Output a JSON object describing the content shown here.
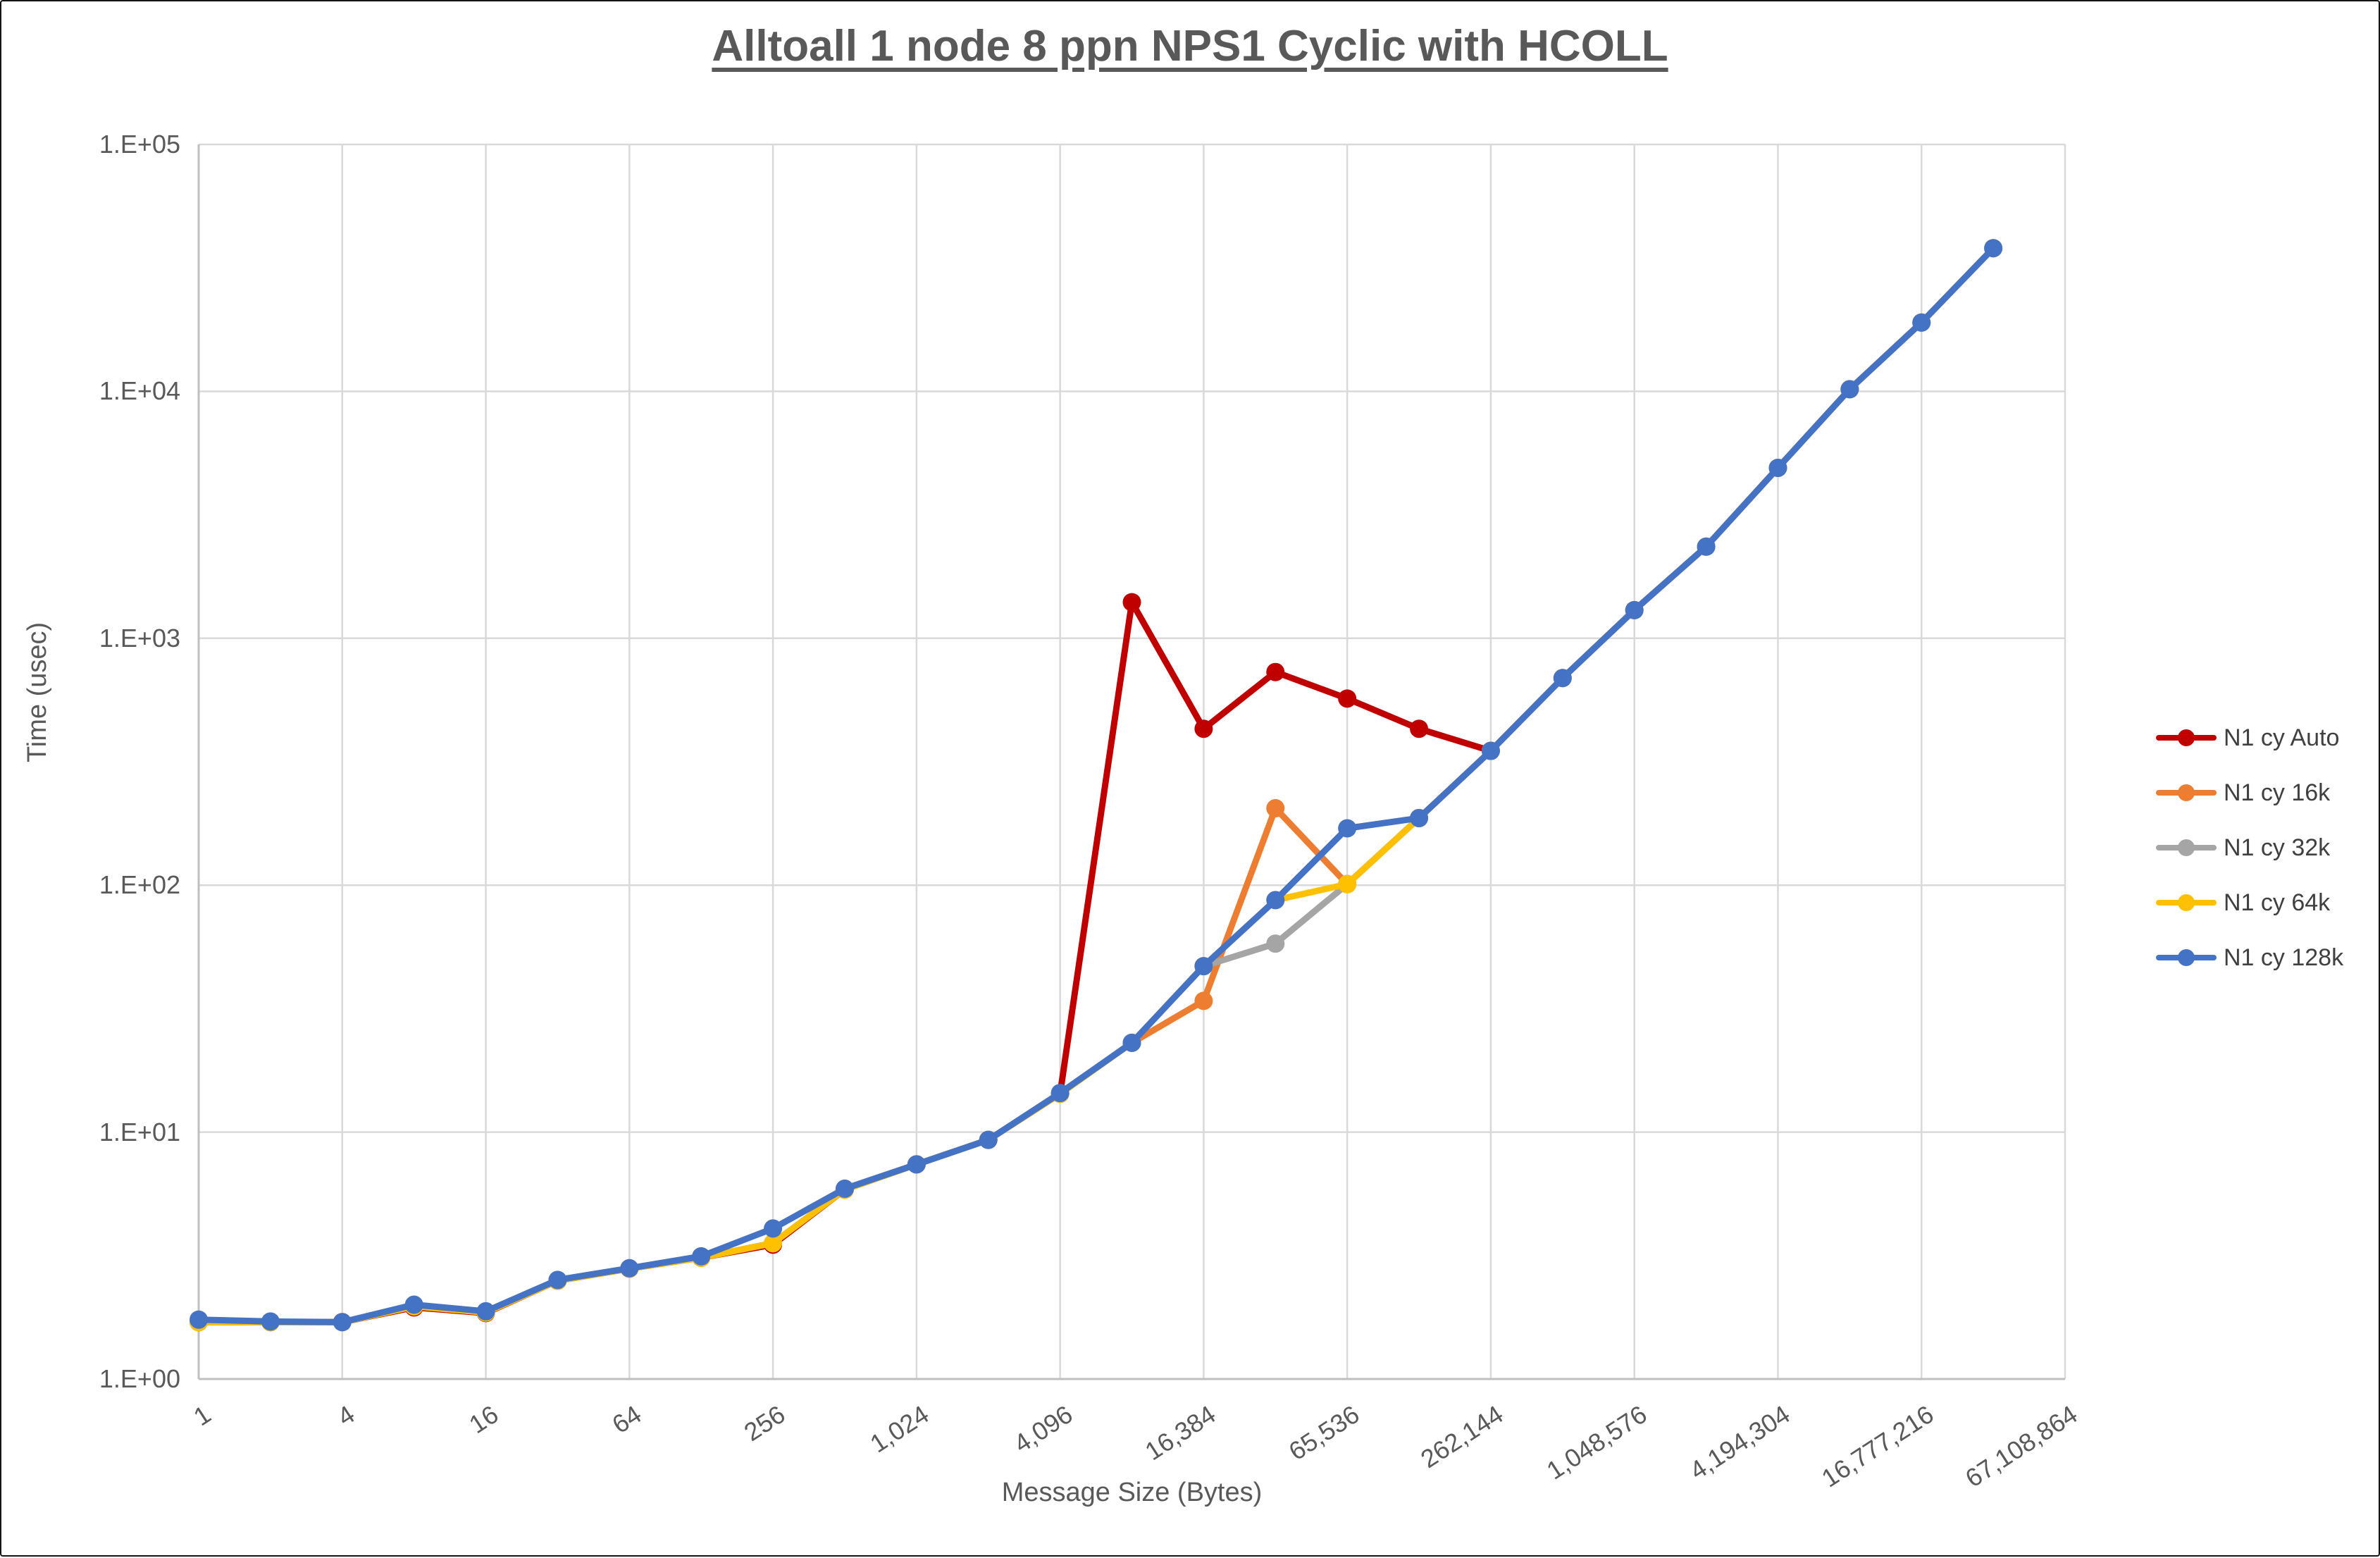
{
  "title": "Alltoall 1 node 8 ppn NPS1 Cyclic with HCOLL",
  "colors": {
    "auto": "#C00000",
    "k16": "#ED7D31",
    "k32": "#A5A5A5",
    "k64": "#FFC000",
    "k128": "#4472C4",
    "gridline": "#D9D9D9",
    "axis_text": "#595959",
    "legend_text": "#404040"
  },
  "legend": {
    "items": [
      {
        "label": "N1 cy Auto",
        "color": "#C00000"
      },
      {
        "label": "N1 cy 16k",
        "color": "#ED7D31"
      },
      {
        "label": "N1 cy 32k",
        "color": "#A5A5A5"
      },
      {
        "label": "N1 cy 64k",
        "color": "#FFC000"
      },
      {
        "label": "N1 cy 128k",
        "color": "#4472C4"
      }
    ]
  },
  "chart_data": {
    "type": "line",
    "title": "Alltoall 1 node 8 ppn NPS1 Cyclic with HCOLL",
    "xlabel": "Message Size (Bytes)",
    "ylabel": "Time (usec)",
    "x_scale": "log2-categories",
    "y_scale": "log10",
    "ylim": [
      1,
      100000
    ],
    "grid": true,
    "legend_position": "right",
    "sizes": [
      1,
      2,
      4,
      8,
      16,
      32,
      64,
      128,
      256,
      512,
      1024,
      2048,
      4096,
      8192,
      16384,
      32768,
      65536,
      131072,
      262144,
      524288,
      1048576,
      2097152,
      4194304,
      8388608,
      16777216,
      33554432
    ],
    "x_tick_labels": [
      "1",
      "4",
      "16",
      "64",
      "256",
      "1,024",
      "4,096",
      "16,384",
      "65,536",
      "262,144",
      "1,048,576",
      "4,194,304",
      "16,777,216",
      "67,108,864"
    ],
    "y_tick_labels": [
      "1.E+00",
      "1.E+01",
      "1.E+02",
      "1.E+03",
      "1.E+04",
      "1.E+05"
    ],
    "x_categories_total": 27,
    "series": [
      {
        "name": "N1 cy Auto",
        "color": "#C00000",
        "values": [
          1.7,
          1.7,
          1.7,
          1.95,
          1.85,
          2.5,
          2.8,
          3.1,
          3.5,
          5.85,
          7.4,
          9.3,
          14.3,
          1400,
          430,
          730,
          570,
          430,
          350
        ]
      },
      {
        "name": "N1 cy 16k",
        "color": "#ED7D31",
        "values": [
          1.7,
          1.7,
          1.7,
          1.97,
          1.86,
          2.5,
          2.8,
          3.1,
          3.55,
          5.85,
          7.4,
          9.3,
          14.3,
          23,
          34,
          205,
          101,
          187,
          350,
          690,
          1300,
          2350,
          4900,
          10200,
          19000,
          38000
        ]
      },
      {
        "name": "N1 cy 32k",
        "color": "#A5A5A5",
        "values": [
          1.7,
          1.7,
          1.7,
          1.97,
          1.86,
          2.5,
          2.8,
          3.1,
          3.55,
          5.85,
          7.4,
          9.3,
          14.3,
          23,
          47,
          58,
          101,
          187,
          350,
          690,
          1300,
          2350,
          4900,
          10200,
          19000,
          38000
        ]
      },
      {
        "name": "N1 cy 64k",
        "color": "#FFC000",
        "values": [
          1.7,
          1.7,
          1.7,
          1.97,
          1.86,
          2.5,
          2.8,
          3.1,
          3.55,
          5.85,
          7.4,
          9.3,
          14.3,
          23,
          47,
          87,
          101,
          187,
          350,
          690,
          1300,
          2350,
          4900,
          10200,
          19000,
          38000
        ]
      },
      {
        "name": "N1 cy 128k",
        "color": "#4472C4",
        "values": [
          1.74,
          1.71,
          1.7,
          2.0,
          1.88,
          2.52,
          2.81,
          3.14,
          4.07,
          5.9,
          7.4,
          9.3,
          14.4,
          23,
          47,
          87,
          170,
          187,
          350,
          690,
          1300,
          2350,
          4900,
          10200,
          19000,
          38000
        ]
      }
    ]
  }
}
